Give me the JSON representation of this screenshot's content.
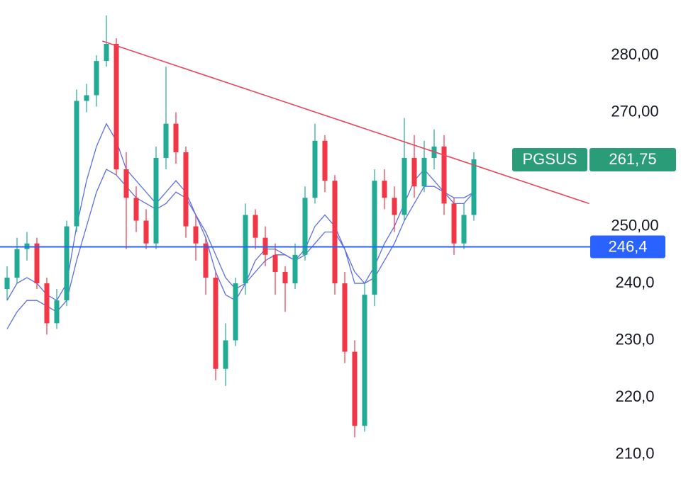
{
  "chart_data": {
    "type": "candlestick",
    "ylim": [
      204.1,
      289.7
    ],
    "yticks": [
      {
        "value": 210,
        "label": "210,0"
      },
      {
        "value": 220,
        "label": "220,0"
      },
      {
        "value": 230,
        "label": "230,0"
      },
      {
        "value": 240,
        "label": "240,0"
      },
      {
        "value": 250,
        "label": "250,00"
      },
      {
        "value": 270,
        "label": "270,00"
      },
      {
        "value": 280,
        "label": "280,00"
      }
    ],
    "up_color": "#22ab94",
    "down_color": "#f23645",
    "open": [
      239,
      241,
      246,
      247,
      240,
      233,
      237,
      250,
      272,
      273,
      279,
      282,
      260,
      255,
      251,
      247,
      262,
      268,
      263,
      250,
      247,
      241,
      225,
      230,
      240,
      252,
      248,
      245,
      242,
      240,
      245,
      255,
      265,
      258,
      240,
      228,
      215,
      238,
      258,
      255,
      252,
      262,
      257,
      262,
      264,
      254,
      247,
      252
    ],
    "high": [
      243,
      248,
      249,
      248,
      241,
      239,
      251,
      274,
      275,
      280,
      287,
      283,
      263,
      257,
      253,
      264,
      278,
      270,
      264,
      252,
      248,
      242,
      233,
      241,
      254,
      253,
      250,
      247,
      243,
      247,
      257,
      268,
      266,
      259,
      242,
      230,
      240,
      260,
      260,
      257,
      269,
      266,
      265,
      267,
      266,
      255,
      254,
      263
    ],
    "low": [
      237,
      240,
      244,
      239,
      231,
      232,
      236,
      249,
      270,
      271,
      278,
      259,
      246,
      249,
      246,
      246,
      260,
      261,
      248,
      244,
      238,
      223,
      222,
      229,
      238,
      246,
      243,
      238,
      235,
      239,
      244,
      254,
      256,
      238,
      226,
      213,
      214,
      236,
      253,
      249,
      251,
      255,
      256,
      260,
      252,
      245,
      246,
      251
    ],
    "close": [
      241,
      246,
      247,
      240,
      233,
      237,
      250,
      272,
      273,
      279,
      282,
      260,
      255,
      251,
      247,
      262,
      268,
      263,
      250,
      247,
      241,
      225,
      230,
      240,
      252,
      248,
      245,
      242,
      240,
      245,
      255,
      265,
      258,
      240,
      228,
      215,
      238,
      258,
      255,
      252,
      262,
      257,
      262,
      264,
      254,
      247,
      252,
      261.75
    ],
    "lines": [
      {
        "color": "#5b6ee8",
        "values": [
          237,
          240,
          241,
          240,
          238,
          237,
          240,
          250,
          258,
          264,
          268,
          265,
          260,
          258,
          256,
          254,
          256,
          258,
          256,
          252,
          248,
          242,
          238,
          237,
          240,
          244,
          246,
          246,
          245,
          244,
          246,
          250,
          252,
          250,
          246,
          240,
          240,
          243,
          247,
          250,
          254,
          258,
          260,
          258,
          256,
          254,
          254,
          256
        ]
      },
      {
        "color": "#5b6ee8",
        "values": [
          232,
          235,
          237,
          237,
          236,
          235,
          237,
          244,
          250,
          256,
          260,
          259,
          257,
          255,
          254,
          253,
          254,
          256,
          255,
          252,
          249,
          245,
          241,
          239,
          240,
          242,
          244,
          245,
          245,
          244,
          245,
          247,
          249,
          249,
          246,
          242,
          240,
          241,
          244,
          247,
          251,
          254,
          257,
          257,
          256,
          255,
          255,
          256
        ]
      }
    ],
    "trendline": {
      "color": "#e8465a",
      "x": [
        9.6,
        58.6
      ],
      "values": [
        282.5,
        254
      ]
    },
    "hline": {
      "color": "#2962ff",
      "value": 246.4,
      "label": "246,4"
    },
    "last": {
      "name": "PGSUS",
      "value": 261.75,
      "label": "261,75",
      "color": "#2a9d78"
    }
  }
}
